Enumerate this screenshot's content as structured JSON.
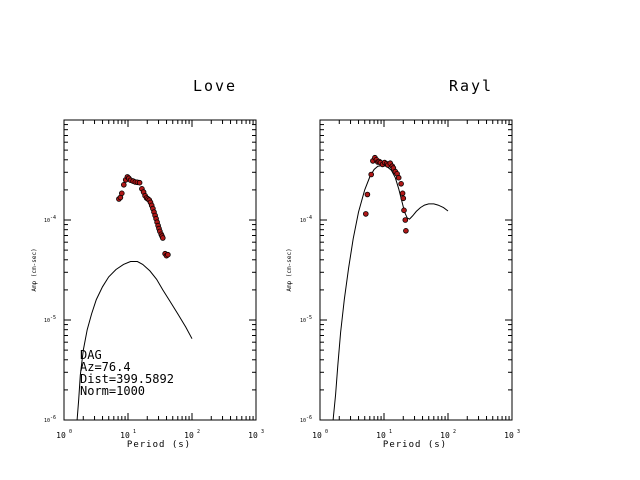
{
  "chart_data": [
    {
      "type": "line",
      "title": "Love",
      "xlabel": "Period (s)",
      "ylabel": "Amp (cm-sec)",
      "xscale": "log",
      "yscale": "log",
      "xlim": [
        1,
        1000
      ],
      "ylim": [
        1e-06,
        0.001
      ],
      "xticks": [
        {
          "m": "10",
          "e": "0"
        },
        {
          "m": "10",
          "e": "1"
        },
        {
          "m": "10",
          "e": "2"
        },
        {
          "m": "10",
          "e": "3"
        }
      ],
      "yticks": [
        {
          "m": "10",
          "e": "-4"
        },
        {
          "m": "10",
          "e": "-5"
        },
        {
          "m": "10",
          "e": "-6"
        }
      ],
      "annotations": [
        "DAG",
        "Az=76.4",
        "Dist=399.5892",
        "Norm=1000"
      ],
      "series": [
        {
          "style": "line",
          "x": [
            1.6,
            1.7,
            1.8,
            2.0,
            2.3,
            2.7,
            3.2,
            4.0,
            5.0,
            6.5,
            8.5,
            11,
            14,
            17,
            22,
            28,
            35,
            45,
            60,
            80,
            100
          ],
          "y": [
            1e-06,
            1.6e-06,
            2.8e-06,
            5e-06,
            8e-06,
            1.15e-05,
            1.6e-05,
            2.15e-05,
            2.7e-05,
            3.2e-05,
            3.6e-05,
            3.85e-05,
            3.85e-05,
            3.6e-05,
            3.1e-05,
            2.55e-05,
            2e-05,
            1.55e-05,
            1.15e-05,
            8.5e-06,
            6.5e-06
          ]
        },
        {
          "style": "points",
          "color": "#b01818",
          "x": [
            7.2,
            7.6,
            8.0,
            8.6,
            9.2,
            9.8,
            10.3,
            11.0,
            12.0,
            13.0,
            14.0,
            15.2,
            16.5,
            17.5,
            18.5,
            19.5,
            20.5,
            21.5,
            22.5,
            23.5,
            24.5,
            25.5,
            26.5,
            27.5,
            28.5,
            29.5,
            30.5,
            31.5,
            33.0,
            34.0,
            35.0,
            38.0,
            40.0,
            42.0
          ],
          "y": [
            0.000162,
            0.000168,
            0.000185,
            0.000225,
            0.000252,
            0.00027,
            0.000262,
            0.00025,
            0.000245,
            0.00024,
            0.000238,
            0.000236,
            0.000205,
            0.00019,
            0.000175,
            0.000166,
            0.000162,
            0.000158,
            0.00015,
            0.00014,
            0.00013,
            0.00012,
            0.000111,
            0.000103,
            9.5e-05,
            8.8e-05,
            8.2e-05,
            7.7e-05,
            7.2e-05,
            6.9e-05,
            6.6e-05,
            4.6e-05,
            4.4e-05,
            4.5e-05
          ]
        }
      ]
    },
    {
      "type": "line",
      "title": "Rayl",
      "xlabel": "Period (s)",
      "ylabel": "Amp (cm-sec)",
      "xscale": "log",
      "yscale": "log",
      "xlim": [
        1,
        1000
      ],
      "ylim": [
        1e-06,
        0.001
      ],
      "xticks": [
        {
          "m": "10",
          "e": "0"
        },
        {
          "m": "10",
          "e": "1"
        },
        {
          "m": "10",
          "e": "2"
        },
        {
          "m": "10",
          "e": "3"
        }
      ],
      "yticks": [
        {
          "m": "10",
          "e": "-4"
        },
        {
          "m": "10",
          "e": "-5"
        },
        {
          "m": "10",
          "e": "-6"
        }
      ],
      "series": [
        {
          "style": "line",
          "x": [
            1.6,
            1.75,
            1.9,
            2.1,
            2.4,
            2.8,
            3.3,
            4.0,
            5.0,
            6.0,
            7.0,
            8.0,
            9.5,
            11,
            13,
            15,
            17,
            19,
            21,
            23,
            25,
            28,
            32,
            37,
            43,
            50,
            60,
            70,
            85,
            100
          ],
          "y": [
            1e-06,
            1.8e-06,
            3.5e-06,
            7.5e-06,
            1.6e-05,
            3.3e-05,
            6.5e-05,
            0.00012,
            0.0002,
            0.00027,
            0.00032,
            0.000345,
            0.00035,
            0.000345,
            0.000315,
            0.000265,
            0.000205,
            0.000155,
            0.00012,
            0.000105,
            0.000102,
            0.00011,
            0.000122,
            0.000133,
            0.000141,
            0.000145,
            0.000145,
            0.000141,
            0.000133,
            0.000123
          ]
        },
        {
          "style": "points",
          "color": "#b01818",
          "x": [
            5.2,
            5.5,
            6.3,
            6.7,
            7.2,
            7.6,
            8.0,
            8.4,
            8.8,
            9.5,
            10.2,
            11.0,
            11.5,
            12.5,
            13.5,
            14.0,
            15.0,
            16.0,
            17.0,
            18.5,
            19.5,
            20.0,
            20.5,
            21.5,
            22.0
          ],
          "y": [
            0.000115,
            0.00018,
            0.000285,
            0.00039,
            0.00042,
            0.0004,
            0.00038,
            0.000385,
            0.000375,
            0.00036,
            0.000375,
            0.000365,
            0.000355,
            0.00037,
            0.000345,
            0.00033,
            0.000305,
            0.00029,
            0.000265,
            0.00023,
            0.000185,
            0.000165,
            0.000125,
            0.0001,
            7.8e-05
          ]
        }
      ]
    }
  ]
}
